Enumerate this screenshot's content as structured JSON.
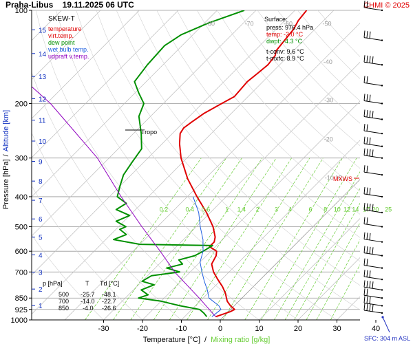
{
  "header": {
    "station_datetime": "Praha-Libus    19.11.2025 06 UTC",
    "credit": "CHMI © 2025"
  },
  "legend": {
    "title": "SKEW-T",
    "entries": [
      {
        "label": "temperature",
        "color": "#e00000"
      },
      {
        "label": "virt.temp.",
        "color": "#e00000"
      },
      {
        "label": "dew point",
        "color": "#00a000"
      },
      {
        "label": "wet bulb temp.",
        "color": "#2060e0"
      },
      {
        "label": "udpraft v.temp.",
        "color": "#9000c0"
      }
    ]
  },
  "surface": {
    "title": "Surface:",
    "press": "press: 976.4 hPa",
    "temp": "temp: -2.0 °C",
    "dwpt": "dwpt: -4.3 °C",
    "tconv": "t-conv: 9.6 °C",
    "tmxfc": "t-mxfc: 8.9 °C"
  },
  "table": {
    "header": [
      "p [hPa]",
      "T",
      "Td [°C]"
    ],
    "rows": [
      [
        "500",
        "-25.7",
        "-48.1"
      ],
      [
        "700",
        "-14.0",
        "-22.7"
      ],
      [
        "850",
        "-4.0",
        "-26.6"
      ]
    ]
  },
  "labels": {
    "tropo": "Tropo",
    "mxws": "MXWS",
    "sfc": "SFC: 304 m ASL",
    "xlabel_temp": "Temperature [°C]",
    "xlabel_sep": "/",
    "xlabel_mix": "Mixing ratio [g/kg]",
    "ylabel_pressure": "Pressure [hPa]",
    "ylabel_sep": "/",
    "ylabel_altitude": "Altitude [km]"
  },
  "colors": {
    "temperature": "#e00000",
    "dewpoint": "#009000",
    "wetbulb": "#2060e0",
    "parcel": "#9000c0",
    "mixing": "#66cc33",
    "isotherm": "#bbbbbb",
    "altitude": "#1030c0"
  },
  "chart_data": {
    "type": "skew-t",
    "title": "SKEW-T",
    "x_axis": {
      "label": "Temperature [°C]",
      "ticks": [
        -30,
        -20,
        -10,
        0,
        10,
        20,
        30,
        40
      ],
      "range": [
        -35,
        43
      ]
    },
    "y_axis": {
      "label": "Pressure [hPa]",
      "scale": "log",
      "ticks": [
        100,
        200,
        300,
        400,
        500,
        600,
        700,
        850,
        925,
        1000
      ],
      "range": [
        1000,
        100
      ]
    },
    "altitude_ticks_km": [
      1,
      2,
      3,
      4,
      5,
      6,
      7,
      8,
      9,
      10,
      11,
      12,
      13,
      14,
      15
    ],
    "isotherm_labels": [
      -80,
      -70,
      -60,
      -50,
      -40,
      -30,
      -20,
      -10
    ],
    "mixing_ratio_labels": [
      "0.2",
      "0.4",
      "0.6",
      "1",
      "1.4",
      "2",
      "3",
      "4",
      "6",
      "8",
      "10",
      "12",
      "14",
      "17",
      "20",
      "25"
    ],
    "series": [
      {
        "name": "temperature",
        "points": [
          [
            976,
            -2.0
          ],
          [
            940,
            0.5
          ],
          [
            925,
            1.0
          ],
          [
            900,
            -1.0
          ],
          [
            870,
            -3.0
          ],
          [
            850,
            -4.0
          ],
          [
            820,
            -5.5
          ],
          [
            780,
            -8.0
          ],
          [
            740,
            -11.0
          ],
          [
            700,
            -14.0
          ],
          [
            660,
            -16.5
          ],
          [
            620,
            -17.5
          ],
          [
            600,
            -18.5
          ],
          [
            580,
            -21.5
          ],
          [
            560,
            -21.5
          ],
          [
            540,
            -22.5
          ],
          [
            500,
            -25.7
          ],
          [
            450,
            -31.0
          ],
          [
            400,
            -37.5
          ],
          [
            350,
            -44.5
          ],
          [
            300,
            -51.5
          ],
          [
            270,
            -55.5
          ],
          [
            250,
            -58.0
          ],
          [
            240,
            -58.5
          ],
          [
            230,
            -58.0
          ],
          [
            215,
            -57.0
          ],
          [
            200,
            -55.0
          ],
          [
            190,
            -53.5
          ],
          [
            170,
            -54.0
          ],
          [
            160,
            -53.5
          ],
          [
            150,
            -53.0
          ],
          [
            140,
            -53.5
          ],
          [
            135,
            -54.5
          ],
          [
            125,
            -55.0
          ],
          [
            115,
            -55.5
          ],
          [
            108,
            -56.5
          ],
          [
            100,
            -57.0
          ]
        ]
      },
      {
        "name": "dew point",
        "points": [
          [
            976,
            -4.3
          ],
          [
            950,
            -6.0
          ],
          [
            925,
            -8.0
          ],
          [
            900,
            -14.0
          ],
          [
            870,
            -20.0
          ],
          [
            850,
            -26.6
          ],
          [
            830,
            -25.0
          ],
          [
            800,
            -28.0
          ],
          [
            770,
            -26.0
          ],
          [
            750,
            -30.0
          ],
          [
            720,
            -29.0
          ],
          [
            700,
            -22.7
          ],
          [
            680,
            -27.0
          ],
          [
            660,
            -24.0
          ],
          [
            640,
            -26.0
          ],
          [
            620,
            -23.0
          ],
          [
            600,
            -22.0
          ],
          [
            575,
            -21.0
          ],
          [
            570,
            -40.0
          ],
          [
            550,
            -48.0
          ],
          [
            530,
            -46.0
          ],
          [
            510,
            -49.0
          ],
          [
            500,
            -48.1
          ],
          [
            480,
            -52.0
          ],
          [
            460,
            -50.0
          ],
          [
            440,
            -55.0
          ],
          [
            420,
            -54.0
          ],
          [
            400,
            -58.0
          ],
          [
            370,
            -60.0
          ],
          [
            340,
            -62.0
          ],
          [
            310,
            -63.0
          ],
          [
            280,
            -64.0
          ],
          [
            250,
            -68.0
          ],
          [
            220,
            -73.0
          ],
          [
            200,
            -75.0
          ],
          [
            185,
            -79.0
          ],
          [
            170,
            -83.0
          ],
          [
            150,
            -84.0
          ],
          [
            130,
            -84.5
          ],
          [
            120,
            -83.0
          ],
          [
            110,
            -79.0
          ],
          [
            100,
            -73.0
          ]
        ]
      },
      {
        "name": "wet bulb temp.",
        "points": [
          [
            976,
            -3.0
          ],
          [
            925,
            -2.5
          ],
          [
            900,
            -4.0
          ],
          [
            850,
            -8.5
          ],
          [
            800,
            -11.0
          ],
          [
            750,
            -14.0
          ],
          [
            700,
            -17.0
          ],
          [
            650,
            -20.0
          ],
          [
            600,
            -22.0
          ],
          [
            550,
            -25.0
          ],
          [
            500,
            -29.0
          ],
          [
            450,
            -33.0
          ],
          [
            400,
            -38.5
          ]
        ]
      },
      {
        "name": "udpraft v.temp.",
        "points": [
          [
            976,
            -2.0
          ],
          [
            925,
            -5.5
          ],
          [
            850,
            -11.0
          ],
          [
            700,
            -24.0
          ],
          [
            600,
            -33.0
          ],
          [
            500,
            -44.0
          ],
          [
            400,
            -57.0
          ],
          [
            300,
            -73.0
          ],
          [
            200,
            -99.0
          ],
          [
            140,
            -125.0
          ]
        ]
      }
    ],
    "wind_barb_levels": [
      100,
      125,
      150,
      175,
      200,
      225,
      250,
      275,
      300,
      340,
      400,
      450,
      500,
      560,
      620,
      680,
      740,
      800,
      850,
      900,
      950
    ],
    "tropopause_hpa": 240,
    "max_wind_hpa": 345
  }
}
